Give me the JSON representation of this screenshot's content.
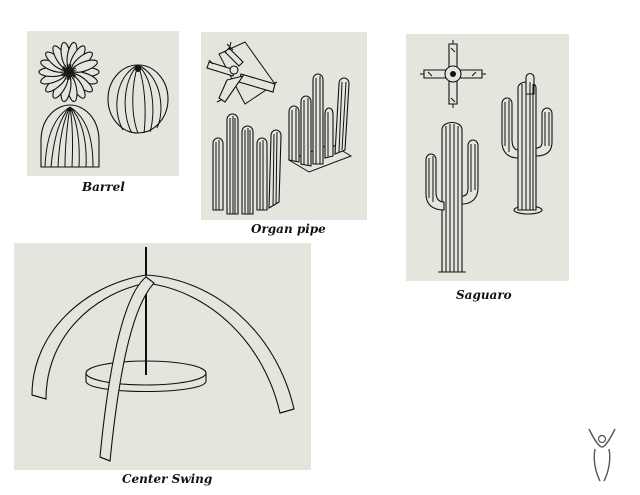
{
  "captions": {
    "barrel": "Barrel",
    "organ_pipe": "Organ pipe",
    "saguaro": "Saguaro",
    "center_swing": "Center Swing"
  },
  "icons": {
    "barrel": "barrel-cactus-drawings",
    "organ_pipe": "organ-pipe-cactus-drawings",
    "saguaro": "saguaro-cactus-drawings",
    "center_swing": "center-swing-structure-drawing",
    "logo": "human-figure-logo"
  },
  "colors": {
    "panel_bg": "#e5e4dd",
    "line": "#111111",
    "page_bg": "#ffffff"
  }
}
